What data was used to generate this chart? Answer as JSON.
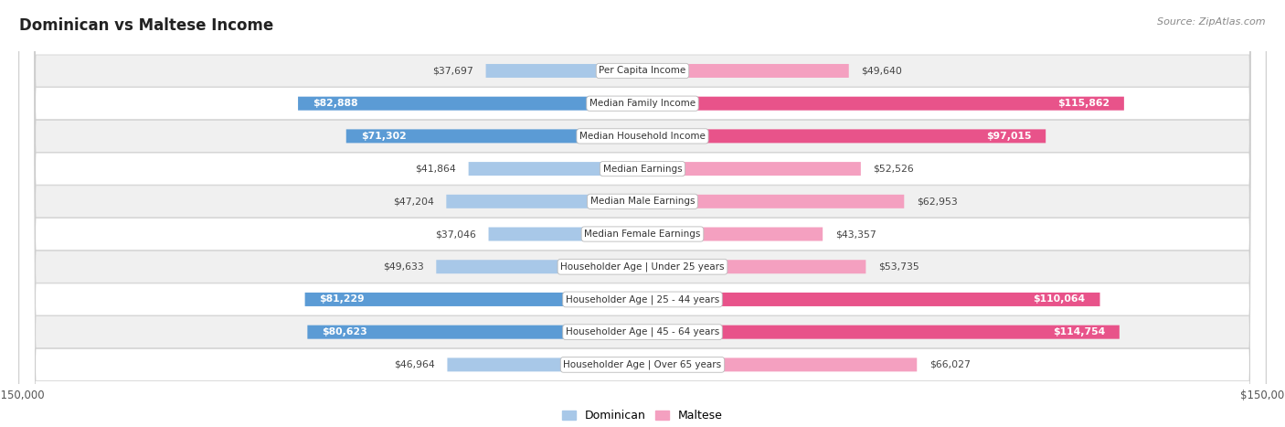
{
  "title": "Dominican vs Maltese Income",
  "source": "Source: ZipAtlas.com",
  "categories": [
    "Per Capita Income",
    "Median Family Income",
    "Median Household Income",
    "Median Earnings",
    "Median Male Earnings",
    "Median Female Earnings",
    "Householder Age | Under 25 years",
    "Householder Age | 25 - 44 years",
    "Householder Age | 45 - 64 years",
    "Householder Age | Over 65 years"
  ],
  "dominican_values": [
    37697,
    82888,
    71302,
    41864,
    47204,
    37046,
    49633,
    81229,
    80623,
    46964
  ],
  "maltese_values": [
    49640,
    115862,
    97015,
    52526,
    62953,
    43357,
    53735,
    110064,
    114754,
    66027
  ],
  "dominican_labels": [
    "$37,697",
    "$82,888",
    "$71,302",
    "$41,864",
    "$47,204",
    "$37,046",
    "$49,633",
    "$81,229",
    "$80,623",
    "$46,964"
  ],
  "maltese_labels": [
    "$49,640",
    "$115,862",
    "$97,015",
    "$52,526",
    "$62,953",
    "$43,357",
    "$53,735",
    "$110,064",
    "$114,754",
    "$66,027"
  ],
  "max_value": 150000,
  "dominican_color_light": "#a8c8e8",
  "dominican_color_dark": "#5b9bd5",
  "maltese_color_light": "#f4a0c0",
  "maltese_color_dark": "#e8538a",
  "bg_color": "#ffffff",
  "row_bg_even": "#f0f0f0",
  "row_bg_odd": "#ffffff",
  "legend_dominican": "Dominican",
  "legend_maltese": "Maltese",
  "title_fontsize": 12,
  "dom_threshold": 65000,
  "malt_threshold": 80000
}
